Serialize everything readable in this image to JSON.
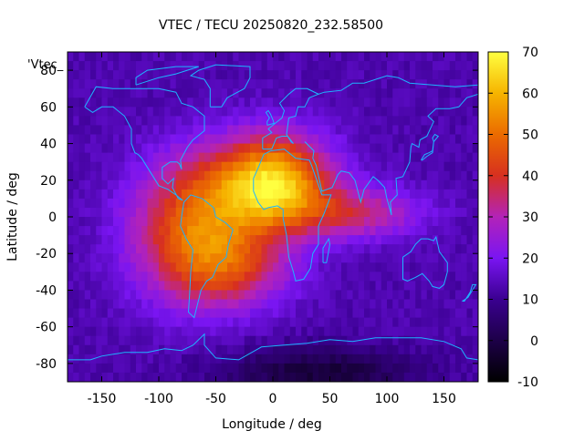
{
  "chart_data": {
    "type": "heatmap",
    "title": "VTEC / TECU 20250820_232.58500",
    "xlabel": "Longitude / deg",
    "ylabel": "Latitude / deg",
    "key_label": "'Vtec_",
    "xlim": [
      -180,
      180
    ],
    "ylim": [
      -90,
      90
    ],
    "xticks": [
      "-150",
      "-100",
      "-50",
      "0",
      "50",
      "100",
      "150"
    ],
    "yticks": [
      "80",
      "60",
      "40",
      "20",
      "0",
      "-20",
      "-40",
      "-60",
      "-80"
    ],
    "colorbar": {
      "range": [
        -10,
        70
      ],
      "ticks": [
        "70",
        "60",
        "50",
        "40",
        "30",
        "20",
        "10",
        "0",
        "-10"
      ]
    },
    "grid": {
      "lon_step": 5,
      "lat_step": 5
    },
    "tec_field": {
      "background": 13,
      "blobs": [
        {
          "lon": -65,
          "lat": -12,
          "sigma_lon": 40,
          "sigma_lat": 24,
          "amp": 35
        },
        {
          "lon": 5,
          "lat": 18,
          "sigma_lon": 32,
          "sigma_lat": 18,
          "amp": 37
        },
        {
          "lon": -30,
          "lat": 20,
          "sigma_lon": 50,
          "sigma_lat": 18,
          "amp": 18
        },
        {
          "lon": 75,
          "lat": 2,
          "sigma_lon": 40,
          "sigma_lat": 10,
          "amp": 20
        },
        {
          "lon": -30,
          "lat": -30,
          "sigma_lon": 35,
          "sigma_lat": 14,
          "amp": 14
        },
        {
          "lon": 40,
          "lat": -85,
          "sigma_lon": 60,
          "sigma_lat": 10,
          "amp": -15
        }
      ]
    },
    "coastlines": [
      {
        "name": "north-america",
        "points": [
          [
            -165,
            60
          ],
          [
            -155,
            71
          ],
          [
            -140,
            70
          ],
          [
            -120,
            70
          ],
          [
            -100,
            70
          ],
          [
            -85,
            68
          ],
          [
            -80,
            62
          ],
          [
            -70,
            60
          ],
          [
            -60,
            55
          ],
          [
            -60,
            47
          ],
          [
            -66,
            44
          ],
          [
            -70,
            42
          ],
          [
            -75,
            38
          ],
          [
            -81,
            31
          ],
          [
            -80,
            26
          ],
          [
            -82,
            29
          ],
          [
            -84,
            30
          ],
          [
            -90,
            30
          ],
          [
            -97,
            27
          ],
          [
            -97,
            21
          ],
          [
            -92,
            18
          ],
          [
            -87,
            21
          ],
          [
            -88,
            16
          ],
          [
            -83,
            10
          ],
          [
            -79,
            9
          ],
          [
            -85,
            12
          ],
          [
            -92,
            15
          ],
          [
            -100,
            17
          ],
          [
            -106,
            23
          ],
          [
            -110,
            27
          ],
          [
            -115,
            32
          ],
          [
            -118,
            34
          ],
          [
            -121,
            35
          ],
          [
            -124,
            40
          ],
          [
            -124,
            48
          ],
          [
            -130,
            55
          ],
          [
            -140,
            60
          ],
          [
            -150,
            60
          ],
          [
            -158,
            57
          ],
          [
            -165,
            60
          ]
        ]
      },
      {
        "name": "south-america",
        "points": [
          [
            -78,
            8
          ],
          [
            -72,
            12
          ],
          [
            -62,
            10
          ],
          [
            -52,
            5
          ],
          [
            -50,
            0
          ],
          [
            -42,
            -3
          ],
          [
            -35,
            -7
          ],
          [
            -39,
            -15
          ],
          [
            -41,
            -22
          ],
          [
            -48,
            -26
          ],
          [
            -53,
            -33
          ],
          [
            -58,
            -35
          ],
          [
            -63,
            -40
          ],
          [
            -65,
            -45
          ],
          [
            -67,
            -50
          ],
          [
            -69,
            -55
          ],
          [
            -74,
            -52
          ],
          [
            -73,
            -42
          ],
          [
            -72,
            -30
          ],
          [
            -70,
            -18
          ],
          [
            -76,
            -12
          ],
          [
            -81,
            -5
          ],
          [
            -80,
            0
          ],
          [
            -78,
            8
          ]
        ]
      },
      {
        "name": "africa",
        "points": [
          [
            -17,
            21
          ],
          [
            -12,
            28
          ],
          [
            -8,
            34
          ],
          [
            -2,
            36
          ],
          [
            10,
            37
          ],
          [
            20,
            32
          ],
          [
            32,
            31
          ],
          [
            34,
            28
          ],
          [
            43,
            12
          ],
          [
            51,
            12
          ],
          [
            45,
            2
          ],
          [
            40,
            -5
          ],
          [
            40,
            -15
          ],
          [
            35,
            -20
          ],
          [
            33,
            -28
          ],
          [
            27,
            -34
          ],
          [
            20,
            -35
          ],
          [
            18,
            -30
          ],
          [
            14,
            -22
          ],
          [
            12,
            -10
          ],
          [
            9,
            -1
          ],
          [
            9,
            4
          ],
          [
            4,
            6
          ],
          [
            -4,
            5
          ],
          [
            -8,
            4
          ],
          [
            -13,
            8
          ],
          [
            -17,
            14
          ],
          [
            -17,
            21
          ]
        ]
      },
      {
        "name": "europe",
        "points": [
          [
            -9,
            37
          ],
          [
            -9,
            43
          ],
          [
            -1,
            46
          ],
          [
            -4,
            48
          ],
          [
            2,
            51
          ],
          [
            8,
            54
          ],
          [
            10,
            58
          ],
          [
            6,
            62
          ],
          [
            14,
            67
          ],
          [
            20,
            70
          ],
          [
            30,
            70
          ],
          [
            40,
            67
          ],
          [
            32,
            65
          ],
          [
            28,
            60
          ],
          [
            22,
            60
          ],
          [
            20,
            55
          ],
          [
            14,
            54
          ],
          [
            12,
            45
          ],
          [
            16,
            41
          ],
          [
            18,
            40
          ],
          [
            13,
            44
          ],
          [
            8,
            44
          ],
          [
            3,
            43
          ],
          [
            -1,
            37
          ],
          [
            -9,
            37
          ]
        ]
      },
      {
        "name": "asia",
        "points": [
          [
            28,
            41
          ],
          [
            36,
            36
          ],
          [
            35,
            32
          ],
          [
            38,
            28
          ],
          [
            43,
            14
          ],
          [
            52,
            16
          ],
          [
            57,
            23
          ],
          [
            60,
            25
          ],
          [
            67,
            24
          ],
          [
            72,
            20
          ],
          [
            77,
            8
          ],
          [
            80,
            15
          ],
          [
            88,
            22
          ],
          [
            92,
            20
          ],
          [
            98,
            16
          ],
          [
            100,
            10
          ],
          [
            104,
            1
          ],
          [
            103,
            8
          ],
          [
            106,
            10
          ],
          [
            109,
            12
          ],
          [
            108,
            21
          ],
          [
            114,
            22
          ],
          [
            120,
            30
          ],
          [
            121,
            38
          ],
          [
            122,
            40
          ],
          [
            128,
            38
          ],
          [
            129,
            42
          ],
          [
            135,
            44
          ],
          [
            141,
            52
          ],
          [
            136,
            55
          ],
          [
            143,
            59
          ],
          [
            155,
            59
          ],
          [
            163,
            60
          ],
          [
            170,
            65
          ],
          [
            180,
            67
          ],
          [
            180,
            72
          ],
          [
            160,
            71
          ],
          [
            140,
            72
          ],
          [
            120,
            73
          ],
          [
            110,
            76
          ],
          [
            100,
            77
          ],
          [
            80,
            73
          ],
          [
            70,
            73
          ],
          [
            60,
            69
          ],
          [
            45,
            68
          ],
          [
            40,
            67
          ],
          [
            30,
            70
          ]
        ]
      },
      {
        "name": "australia",
        "points": [
          [
            114,
            -22
          ],
          [
            114,
            -34
          ],
          [
            118,
            -35
          ],
          [
            125,
            -33
          ],
          [
            131,
            -31
          ],
          [
            137,
            -35
          ],
          [
            140,
            -38
          ],
          [
            146,
            -39
          ],
          [
            150,
            -37
          ],
          [
            153,
            -30
          ],
          [
            153,
            -25
          ],
          [
            146,
            -19
          ],
          [
            143,
            -11
          ],
          [
            141,
            -13
          ],
          [
            136,
            -12
          ],
          [
            130,
            -12
          ],
          [
            125,
            -15
          ],
          [
            121,
            -19
          ],
          [
            114,
            -22
          ]
        ]
      },
      {
        "name": "greenland",
        "points": [
          [
            -55,
            60
          ],
          [
            -45,
            60
          ],
          [
            -40,
            65
          ],
          [
            -25,
            70
          ],
          [
            -20,
            76
          ],
          [
            -20,
            82
          ],
          [
            -50,
            83
          ],
          [
            -65,
            80
          ],
          [
            -72,
            77
          ],
          [
            -60,
            75
          ],
          [
            -55,
            70
          ],
          [
            -55,
            60
          ]
        ]
      },
      {
        "name": "britain",
        "points": [
          [
            -5,
            50
          ],
          [
            1,
            51
          ],
          [
            0,
            53
          ],
          [
            -2,
            56
          ],
          [
            -4,
            58
          ],
          [
            -6,
            57
          ],
          [
            -3,
            54
          ],
          [
            -5,
            52
          ],
          [
            -5,
            50
          ]
        ]
      },
      {
        "name": "madagascar",
        "points": [
          [
            44,
            -25
          ],
          [
            47,
            -25
          ],
          [
            50,
            -15
          ],
          [
            49,
            -12
          ],
          [
            44,
            -17
          ],
          [
            44,
            -25
          ]
        ]
      },
      {
        "name": "japan",
        "points": [
          [
            130,
            31
          ],
          [
            133,
            34
          ],
          [
            137,
            35
          ],
          [
            140,
            36
          ],
          [
            141,
            41
          ],
          [
            140,
            43
          ],
          [
            142,
            45
          ],
          [
            145,
            44
          ],
          [
            141,
            41
          ],
          [
            140,
            35
          ],
          [
            135,
            33
          ],
          [
            131,
            31
          ],
          [
            130,
            31
          ]
        ]
      },
      {
        "name": "new-zealand",
        "points": [
          [
            166,
            -46
          ],
          [
            171,
            -44
          ],
          [
            174,
            -41
          ],
          [
            178,
            -37
          ],
          [
            175,
            -37
          ],
          [
            173,
            -41
          ],
          [
            168,
            -46
          ],
          [
            166,
            -46
          ]
        ]
      },
      {
        "name": "antarctica",
        "points": [
          [
            -180,
            -78
          ],
          [
            -160,
            -78
          ],
          [
            -150,
            -76
          ],
          [
            -130,
            -74
          ],
          [
            -110,
            -74
          ],
          [
            -95,
            -72
          ],
          [
            -80,
            -73
          ],
          [
            -70,
            -70
          ],
          [
            -60,
            -64
          ],
          [
            -60,
            -70
          ],
          [
            -50,
            -77
          ],
          [
            -30,
            -78
          ],
          [
            -10,
            -71
          ],
          [
            10,
            -70
          ],
          [
            30,
            -69
          ],
          [
            50,
            -67
          ],
          [
            70,
            -68
          ],
          [
            90,
            -66
          ],
          [
            110,
            -66
          ],
          [
            130,
            -66
          ],
          [
            150,
            -68
          ],
          [
            165,
            -72
          ],
          [
            170,
            -77
          ],
          [
            180,
            -78
          ]
        ]
      },
      {
        "name": "canadian-arctic",
        "points": [
          [
            -120,
            72
          ],
          [
            -100,
            76
          ],
          [
            -85,
            78
          ],
          [
            -75,
            80
          ],
          [
            -65,
            82
          ],
          [
            -85,
            82
          ],
          [
            -110,
            80
          ],
          [
            -120,
            76
          ],
          [
            -120,
            72
          ]
        ]
      }
    ]
  }
}
